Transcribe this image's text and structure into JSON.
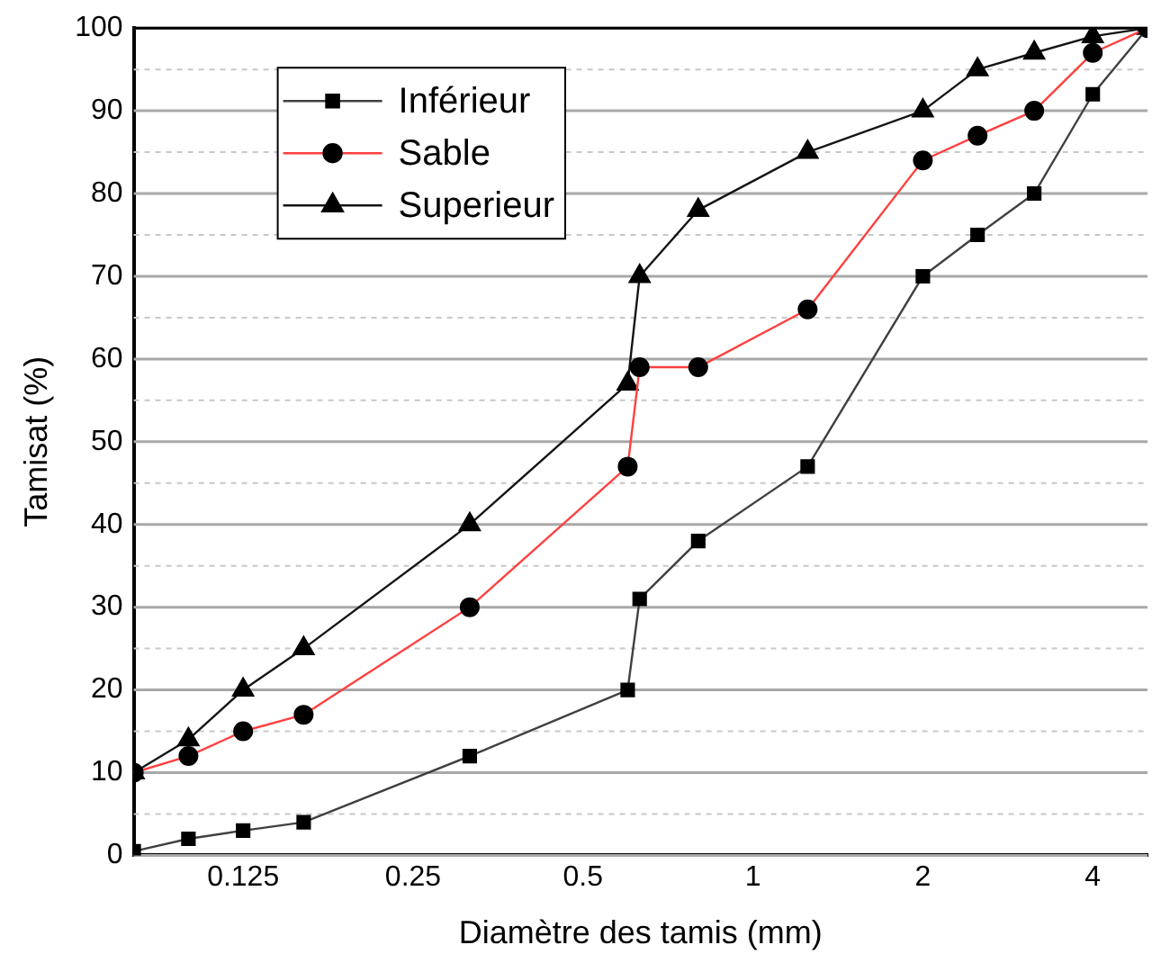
{
  "chart_data": {
    "type": "line",
    "xlabel": "Diamètre des tamis (mm)",
    "ylabel": "Tamisat (%)",
    "log": "x",
    "x": [
      0.08,
      0.1,
      0.125,
      0.16,
      0.315,
      0.6,
      0.63,
      0.8,
      1.25,
      2,
      2.5,
      3.15,
      4,
      5
    ],
    "xlim": [
      0.08,
      5
    ],
    "xticks": [
      0.125,
      0.25,
      0.5,
      1,
      2,
      4
    ],
    "ylim": [
      0,
      100
    ],
    "yticks": [
      0,
      {
        "value": 5,
        "label": null
      },
      10,
      {
        "value": 15,
        "label": null
      },
      20,
      {
        "value": 25,
        "label": null
      },
      30,
      {
        "value": 35,
        "label": null
      },
      40,
      {
        "value": 45,
        "label": null
      },
      50,
      {
        "value": 55,
        "label": null
      },
      60,
      {
        "value": 65,
        "label": null
      },
      70,
      {
        "value": 75,
        "label": null
      },
      80,
      {
        "value": 85,
        "label": null
      },
      90,
      {
        "value": 95,
        "label": null
      },
      100
    ],
    "grid": "y",
    "legend": "top left",
    "series": [
      {
        "name": "Inférieur",
        "color": "#404040",
        "marker": "square",
        "values": [
          0.5,
          2,
          3,
          4,
          12,
          20,
          31,
          38,
          47,
          70,
          75,
          80,
          92,
          100
        ]
      },
      {
        "name": "Sable",
        "color": "#ff4040",
        "marker": "circle",
        "values": [
          10,
          12,
          15,
          17,
          30,
          47,
          59,
          59,
          66,
          84,
          87,
          90,
          97,
          100
        ]
      },
      {
        "name": "Superieur",
        "color": "#141414",
        "marker": "triangle",
        "values": [
          10,
          14,
          20,
          25,
          40,
          57,
          70,
          78,
          85,
          90,
          95,
          97,
          99,
          100
        ]
      }
    ]
  }
}
